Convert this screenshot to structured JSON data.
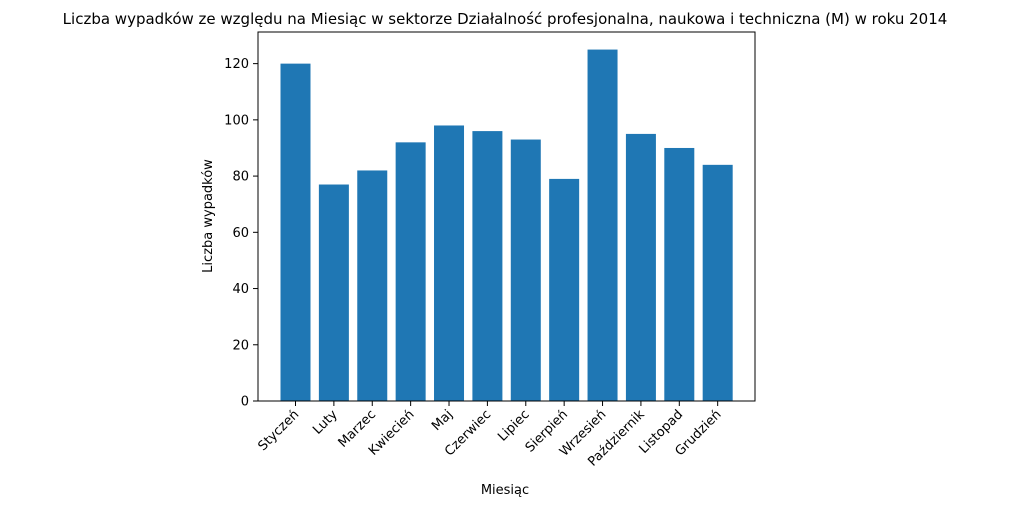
{
  "chart_data": {
    "type": "bar",
    "title": "Liczba wypadków ze względu na Miesiąc w sektorze Działalność profesjonalna, naukowa i techniczna  (M) w roku 2014",
    "xlabel": "Miesiąc",
    "ylabel": "Liczba wypadków",
    "categories": [
      "Styczeń",
      "Luty",
      "Marzec",
      "Kwiecień",
      "Maj",
      "Czerwiec",
      "Lipiec",
      "Sierpień",
      "Wrzesień",
      "Październik",
      "Listopad",
      "Grudzień"
    ],
    "values": [
      120,
      77,
      82,
      92,
      98,
      96,
      93,
      79,
      125,
      95,
      90,
      84
    ],
    "ylim": [
      0,
      131.25
    ],
    "yticks": [
      "0",
      "20",
      "40",
      "60",
      "80",
      "100",
      "120"
    ],
    "bar_color": "#1f77b4",
    "grid": false,
    "legend": "none"
  }
}
